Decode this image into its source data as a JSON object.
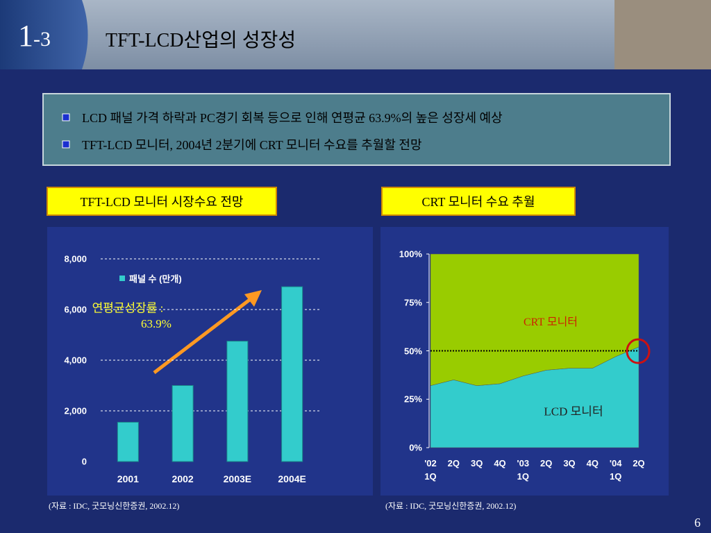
{
  "header": {
    "section_number": "1",
    "section_sub": "-3",
    "title": "TFT-LCD산업의 성장성"
  },
  "bullets": [
    "LCD 패널 가격 하락과 PC경기 회복 등으로 인해 연평균 63.9%의 높은 성장세 예상",
    "TFT-LCD 모니터, 2004년 2분기에 CRT 모니터 수요를 추월할 전망"
  ],
  "chart_data": [
    {
      "type": "bar",
      "title": "TFT-LCD 모니터 시장수요 전망",
      "categories": [
        "2001",
        "2002",
        "2003E",
        "2004E"
      ],
      "series": [
        {
          "name": "패널 수 (만개)",
          "color": "#33cccc",
          "values": [
            1550,
            3000,
            4750,
            6900
          ]
        }
      ],
      "ylim": [
        0,
        8000
      ],
      "yticks": [
        0,
        {
          "value": 2000,
          "label": "2,000"
        },
        {
          "value": 4000,
          "label": "4,000"
        },
        {
          "value": 6000,
          "label": "6,000"
        },
        {
          "value": 8000,
          "label": "8,000"
        }
      ],
      "grid": true,
      "annotation": [
        "연평균성장률 :",
        "63.9%"
      ],
      "source": "(자료 : IDC, 굿모닝신한증권, 2002.12)"
    },
    {
      "type": "area",
      "stacked": true,
      "title": "CRT 모니터 수요 추월",
      "categories": [
        "'02 1Q",
        "2Q",
        "3Q",
        "4Q",
        "'03 1Q",
        "2Q",
        "3Q",
        "4Q",
        "'04 1Q",
        "2Q"
      ],
      "series": [
        {
          "name": "LCD 모니터",
          "color": "#33cccc",
          "values": [
            32,
            35,
            32,
            33,
            37,
            40,
            41,
            41,
            47,
            52
          ]
        },
        {
          "name": "CRT 모니터",
          "color": "#99cc00",
          "values": [
            68,
            65,
            68,
            67,
            63,
            60,
            59,
            59,
            53,
            48
          ]
        }
      ],
      "ylim": [
        0,
        100
      ],
      "yticks": [
        {
          "value": 0,
          "label": "0%"
        },
        {
          "value": 25,
          "label": "25%"
        },
        {
          "value": 50,
          "label": "50%"
        },
        {
          "value": 75,
          "label": "75%"
        },
        {
          "value": 100,
          "label": "100%"
        }
      ],
      "reference_line": 50,
      "source": "(자료 : IDC, 굿모닝신한증권, 2002.12)"
    }
  ],
  "page_number": "6"
}
